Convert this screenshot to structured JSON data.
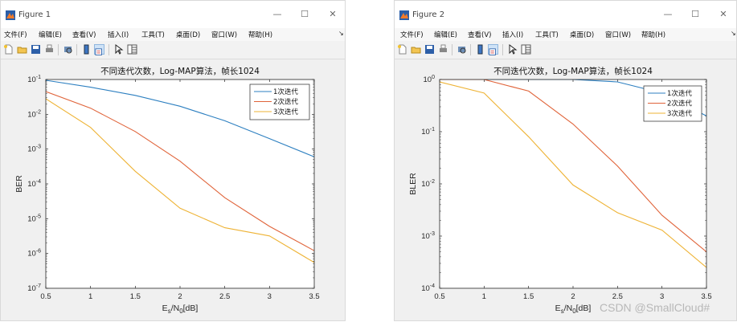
{
  "windows": [
    {
      "title": "Figure 1",
      "menu": [
        "文件(F)",
        "编辑(E)",
        "查看(V)",
        "插入(I)",
        "工具(T)",
        "桌面(D)",
        "窗口(W)",
        "帮助(H)"
      ],
      "controls": {
        "minimize": "—",
        "maximize": "☐",
        "close": "✕"
      }
    },
    {
      "title": "Figure 2",
      "menu": [
        "文件(F)",
        "编辑(E)",
        "查看(V)",
        "插入(I)",
        "工具(T)",
        "桌面(D)",
        "窗口(W)",
        "帮助(H)"
      ],
      "controls": {
        "minimize": "—",
        "maximize": "☐",
        "close": "✕"
      }
    }
  ],
  "toolbar_icons": [
    "new-figure-icon",
    "open-file-icon",
    "save-icon",
    "print-icon",
    "print-preview-icon",
    "insert-colorbar-icon",
    "insert-legend-icon",
    "edit-plot-icon",
    "property-inspector-icon"
  ],
  "colors": {
    "series1": "#2c7fc0",
    "series2": "#e0643a",
    "series3": "#eeb335"
  },
  "chart_data": [
    {
      "type": "line",
      "title": "不同迭代次数，Log-MAP算法，帧长1024",
      "xlabel": "Es/N0[dB]",
      "ylabel": "BER",
      "yscale": "log",
      "xlim": [
        0.5,
        3.5
      ],
      "ylim": [
        1e-07,
        0.1
      ],
      "xticks": [
        "0.5",
        "1",
        "1.5",
        "2",
        "2.5",
        "3",
        "3.5"
      ],
      "yticks": [
        {
          "base": "10",
          "exp": "-1"
        },
        {
          "base": "10",
          "exp": "-2"
        },
        {
          "base": "10",
          "exp": "-3"
        },
        {
          "base": "10",
          "exp": "-4"
        },
        {
          "base": "10",
          "exp": "-5"
        },
        {
          "base": "10",
          "exp": "-6"
        },
        {
          "base": "10",
          "exp": "-7"
        }
      ],
      "legend_position": "top-right",
      "x": [
        0.5,
        1,
        1.5,
        2,
        2.5,
        3,
        3.5
      ],
      "series": [
        {
          "name": "1次迭代",
          "values": [
            0.095,
            0.06,
            0.035,
            0.017,
            0.0065,
            0.002,
            0.0006
          ]
        },
        {
          "name": "2次迭代",
          "values": [
            0.045,
            0.015,
            0.0032,
            0.00045,
            4e-05,
            6e-06,
            1.2e-06
          ]
        },
        {
          "name": "3次迭代",
          "values": [
            0.028,
            0.0042,
            0.00023,
            2e-05,
            5.5e-06,
            3.2e-06,
            5.5e-07
          ]
        }
      ]
    },
    {
      "type": "line",
      "title": "不同迭代次数，Log-MAP算法，帧长1024",
      "xlabel": "Es/N0[dB]",
      "ylabel": "BLER",
      "yscale": "log",
      "xlim": [
        0.5,
        3.5
      ],
      "ylim": [
        0.0001,
        1
      ],
      "xticks": [
        "0.5",
        "1",
        "1.5",
        "2",
        "2.5",
        "3",
        "3.5"
      ],
      "yticks": [
        {
          "base": "10",
          "exp": "0"
        },
        {
          "base": "10",
          "exp": "-1"
        },
        {
          "base": "10",
          "exp": "-2"
        },
        {
          "base": "10",
          "exp": "-3"
        },
        {
          "base": "10",
          "exp": "-4"
        }
      ],
      "legend_position": "top-right",
      "x": [
        0.5,
        1,
        1.5,
        2,
        2.5,
        3,
        3.5
      ],
      "series": [
        {
          "name": "1次迭代",
          "values": [
            1,
            1,
            1,
            1,
            0.9,
            0.55,
            0.2
          ]
        },
        {
          "name": "2次迭代",
          "values": [
            1,
            1,
            0.6,
            0.14,
            0.022,
            0.0025,
            0.0005
          ]
        },
        {
          "name": "3次迭代",
          "values": [
            0.9,
            0.55,
            0.08,
            0.0095,
            0.0028,
            0.0013,
            0.00025
          ]
        }
      ]
    }
  ],
  "watermark": "CSDN @SmallCloud#"
}
